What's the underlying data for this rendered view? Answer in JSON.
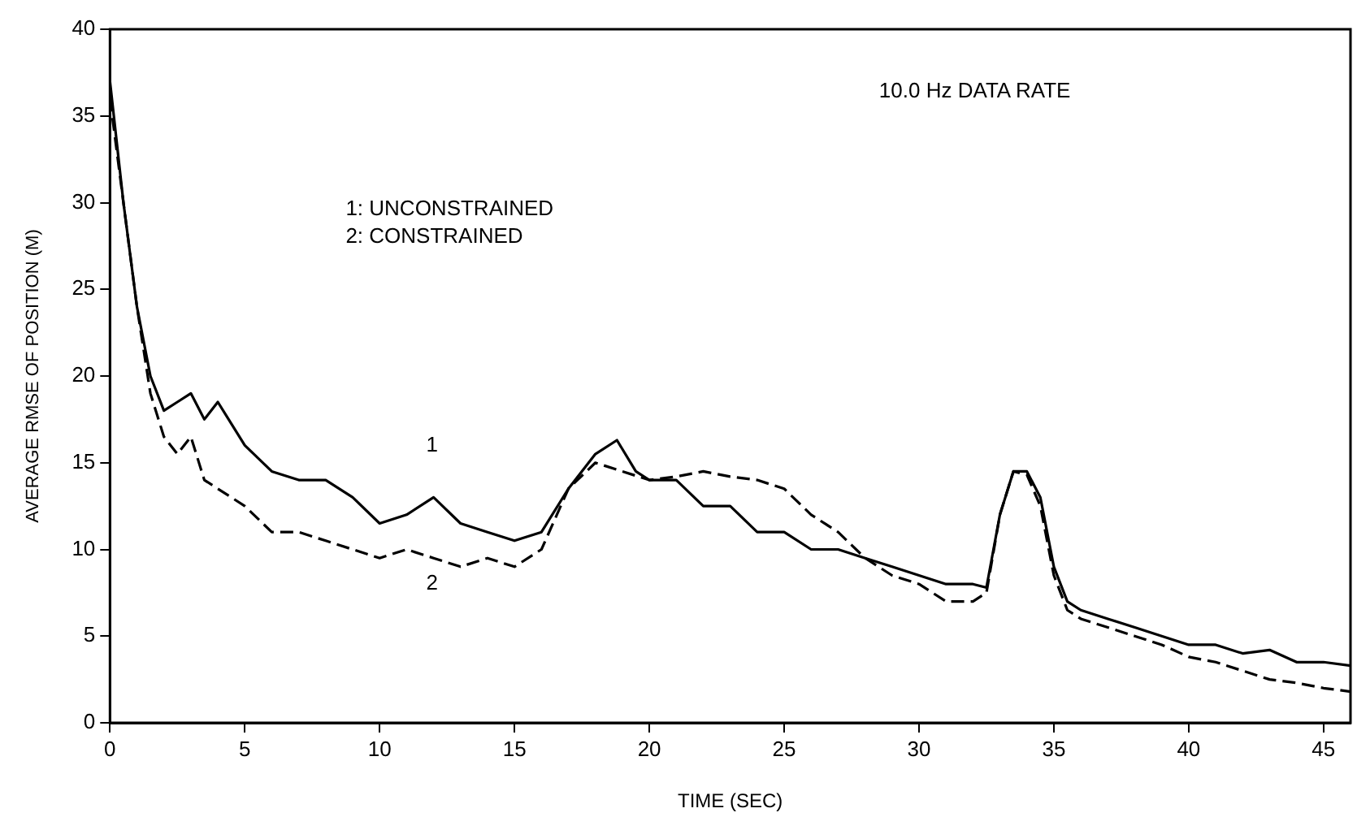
{
  "chart_data": {
    "type": "line",
    "xlabel": "TIME (SEC)",
    "ylabel": "AVERAGE RMSE OF POSITION (M)",
    "xlim": [
      0,
      46
    ],
    "xticks": [
      0,
      5,
      10,
      15,
      20,
      25,
      30,
      35,
      40,
      45
    ],
    "ylim": [
      0,
      40
    ],
    "yticks": [
      0,
      5,
      10,
      15,
      20,
      25,
      30,
      35,
      40
    ],
    "grid": false,
    "legend": false,
    "marker": "none",
    "annotations": [
      "10.0 Hz DATA RATE",
      "1: UNCONSTRAINED",
      "2: CONSTRAINED",
      "1",
      "2"
    ],
    "series": [
      {
        "color": "#000000",
        "line_style": "solid",
        "x": [
          0,
          0.5,
          1,
          1.5,
          2,
          2.5,
          3,
          3.5,
          4,
          5,
          6,
          7,
          8,
          9,
          10,
          11,
          12,
          13,
          14,
          15,
          16,
          17,
          18,
          18.8,
          19.5,
          20,
          21,
          22,
          23,
          24,
          25,
          26,
          27,
          28,
          29,
          30,
          31,
          32,
          32.5,
          33,
          33.5,
          34,
          34.5,
          35,
          35.5,
          36,
          37,
          38,
          39,
          40,
          41,
          42,
          43,
          44,
          45,
          46
        ],
        "values": [
          37,
          30,
          24,
          20,
          18,
          18.5,
          19,
          17.5,
          18.5,
          16,
          14.5,
          14,
          14,
          13,
          11.5,
          12,
          13,
          11.5,
          11,
          10.5,
          11,
          13.5,
          15.5,
          16.3,
          14.5,
          14,
          14,
          12.5,
          12.5,
          11,
          11,
          10,
          10,
          9.5,
          9,
          8.5,
          8,
          8,
          7.8,
          12,
          14.5,
          14.5,
          13,
          9,
          7,
          6.5,
          6,
          5.5,
          5,
          4.5,
          4.5,
          4,
          4.2,
          3.5,
          3.5,
          3.3
        ]
      },
      {
        "color": "#000000",
        "line_style": "dashed",
        "x": [
          0,
          0.5,
          1,
          1.5,
          2,
          2.5,
          3,
          3.5,
          4,
          5,
          6,
          7,
          8,
          9,
          10,
          11,
          12,
          13,
          14,
          15,
          16,
          17,
          18,
          19,
          20,
          21,
          22,
          23,
          24,
          25,
          26,
          27,
          28,
          29,
          30,
          31,
          32,
          32.5,
          33,
          33.5,
          34,
          34.5,
          35,
          35.5,
          36,
          37,
          38,
          39,
          40,
          41,
          42,
          43,
          44,
          45,
          46
        ],
        "values": [
          36,
          30,
          24,
          19,
          16.5,
          15.5,
          16.5,
          14,
          13.5,
          12.5,
          11,
          11,
          10.5,
          10,
          9.5,
          10,
          9.5,
          9,
          9.5,
          9,
          10,
          13.5,
          15,
          14.5,
          14,
          14.2,
          14.5,
          14.2,
          14,
          13.5,
          12,
          11,
          9.5,
          8.5,
          8,
          7,
          7,
          7.5,
          12,
          14.5,
          14.3,
          12.5,
          8.5,
          6.5,
          6,
          5.5,
          5,
          4.5,
          3.8,
          3.5,
          3,
          2.5,
          2.3,
          2,
          1.8
        ]
      }
    ]
  }
}
